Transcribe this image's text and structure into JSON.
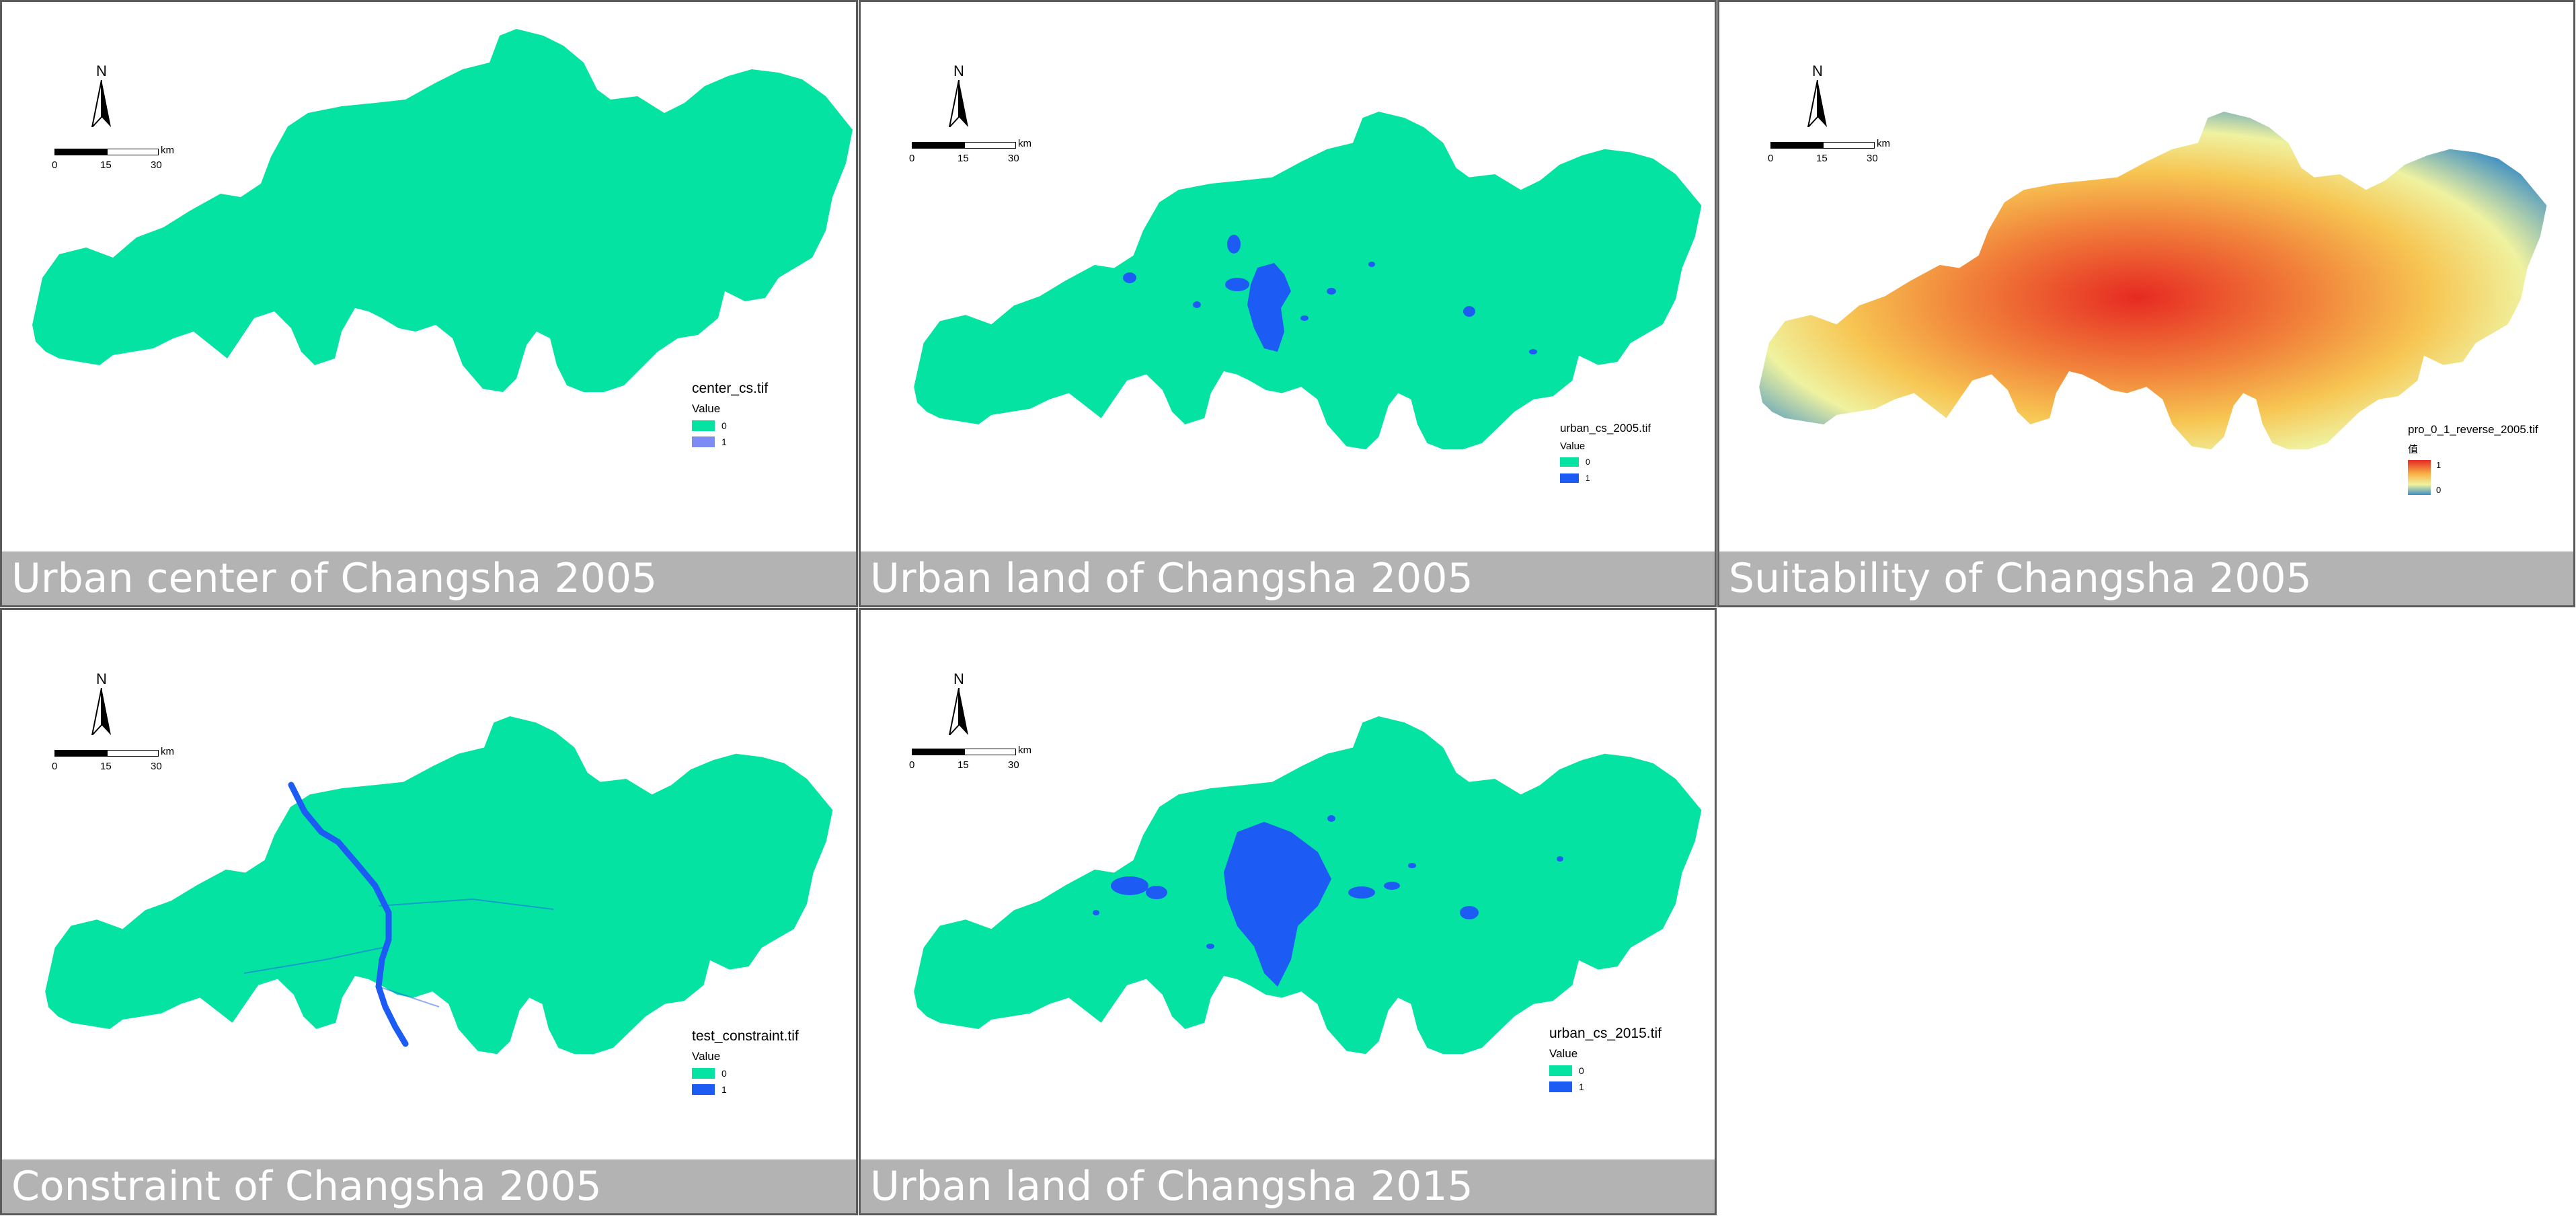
{
  "colors": {
    "region": "#05e3a3",
    "urban": "#1c5cf5",
    "urban_light": "#7d8cf2",
    "caption_bg": "#b3b3b3"
  },
  "panels": [
    {
      "caption": "Urban center of Changsha 2005",
      "north": "N",
      "scale": {
        "ticks": [
          "0",
          "15",
          "30"
        ],
        "unit": "km"
      },
      "legend": {
        "title": "center_cs.tif",
        "subtitle": "Value",
        "items": [
          {
            "label": "0",
            "color": "#05e3a3"
          },
          {
            "label": "1",
            "color": "#7d8cf2"
          }
        ]
      }
    },
    {
      "caption": "Urban land of Changsha 2005",
      "north": "N",
      "scale": {
        "ticks": [
          "0",
          "15",
          "30"
        ],
        "unit": "km"
      },
      "legend": {
        "title": "urban_cs_2005.tif",
        "subtitle": "Value",
        "items": [
          {
            "label": "0",
            "color": "#05e3a3"
          },
          {
            "label": "1",
            "color": "#1c5cf5"
          }
        ]
      }
    },
    {
      "caption": "Suitability of Changsha 2005",
      "north": "N",
      "scale": {
        "ticks": [
          "0",
          "15",
          "30"
        ],
        "unit": "km"
      },
      "legend": {
        "title": "pro_0_1_reverse_2005.tif",
        "subtitle": "值",
        "high_label": "1",
        "low_label": "0",
        "gradient": [
          "#e62a22",
          "#f7b347",
          "#eff2a0",
          "#3e8fc4"
        ]
      }
    },
    {
      "caption": "Constraint of Changsha 2005",
      "north": "N",
      "scale": {
        "ticks": [
          "0",
          "15",
          "30"
        ],
        "unit": "km"
      },
      "legend": {
        "title": "test_constraint.tif",
        "subtitle": "Value",
        "items": [
          {
            "label": "0",
            "color": "#05e3a3"
          },
          {
            "label": "1",
            "color": "#1c5cf5"
          }
        ]
      }
    },
    {
      "caption": "Urban land of Changsha 2015",
      "north": "N",
      "scale": {
        "ticks": [
          "0",
          "15",
          "30"
        ],
        "unit": "km"
      },
      "legend": {
        "title": "urban_cs_2015.tif",
        "subtitle": "Value",
        "items": [
          {
            "label": "0",
            "color": "#05e3a3"
          },
          {
            "label": "1",
            "color": "#1c5cf5"
          }
        ]
      }
    }
  ]
}
